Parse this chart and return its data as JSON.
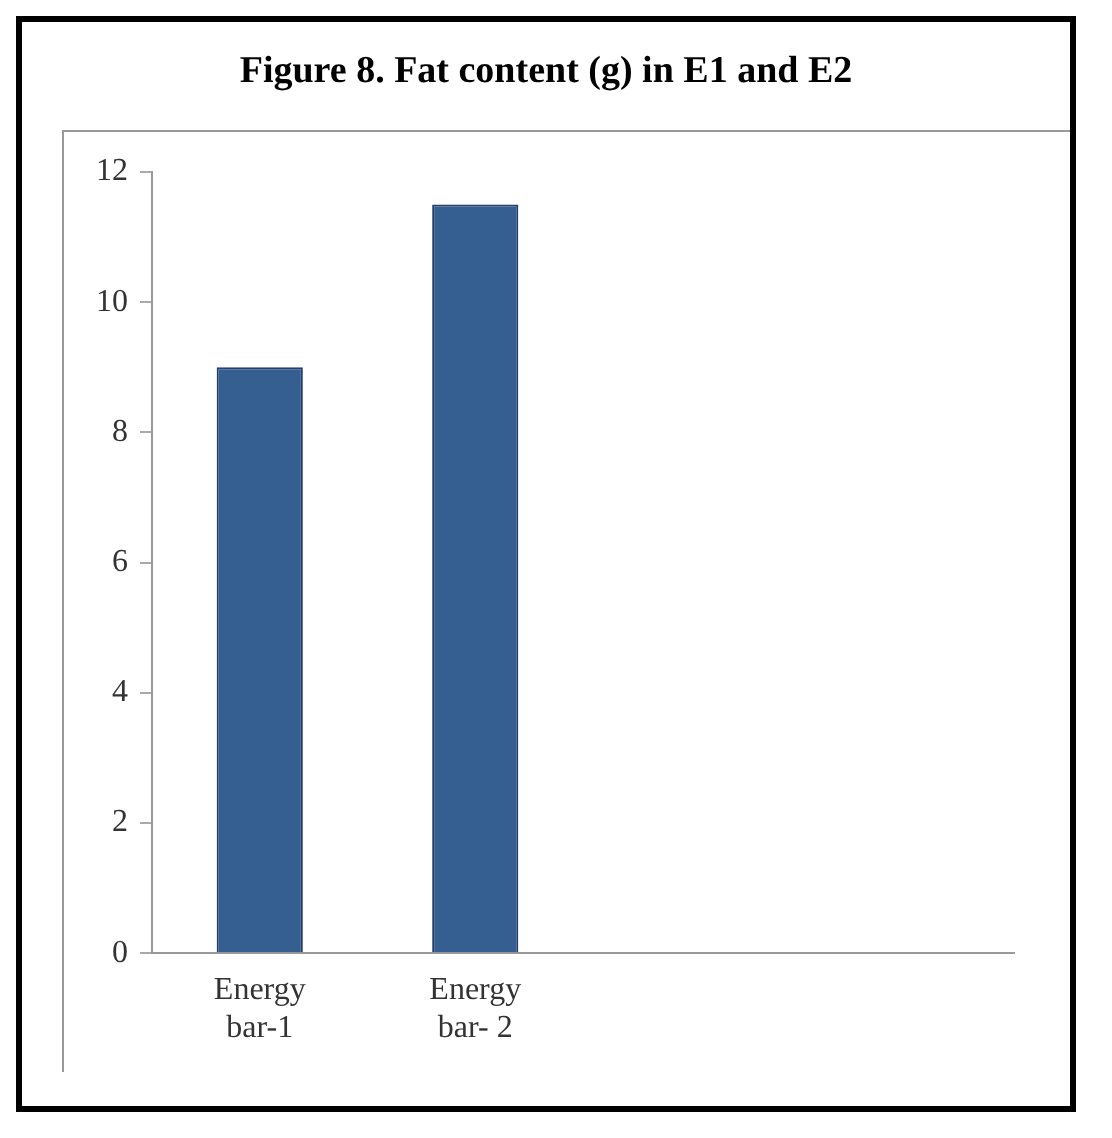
{
  "chart_data": {
    "type": "bar",
    "title": "Figure 8. Fat content (g) in E1 and E2",
    "categories": [
      "Energy bar-1",
      "Energy bar- 2",
      null,
      null
    ],
    "values": [
      9,
      11.5,
      null,
      null
    ],
    "color": "#365f91",
    "ylim": [
      0,
      12
    ],
    "yticks": [
      0,
      2,
      4,
      6,
      8,
      10,
      12
    ],
    "grid": false,
    "legend": false
  }
}
